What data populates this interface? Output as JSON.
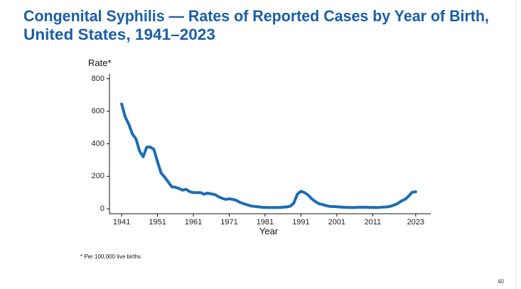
{
  "title_lines": [
    "Congenital Syphilis — Rates of Reported Cases by Year of Birth,",
    "United States, 1941–2023"
  ],
  "footnote": "* Per 100,000 live births",
  "page_number": "40",
  "chart_data": {
    "type": "line",
    "ylabel": "Rate*",
    "xlabel": "Year",
    "x": [
      1941,
      1942,
      1943,
      1944,
      1945,
      1946,
      1947,
      1948,
      1949,
      1950,
      1951,
      1952,
      1953,
      1954,
      1955,
      1956,
      1957,
      1958,
      1959,
      1960,
      1961,
      1962,
      1963,
      1964,
      1965,
      1966,
      1967,
      1968,
      1969,
      1970,
      1971,
      1972,
      1973,
      1974,
      1975,
      1976,
      1977,
      1978,
      1979,
      1980,
      1981,
      1982,
      1983,
      1984,
      1985,
      1986,
      1987,
      1988,
      1989,
      1990,
      1991,
      1992,
      1993,
      1994,
      1995,
      1996,
      1997,
      1998,
      1999,
      2000,
      2001,
      2002,
      2003,
      2004,
      2005,
      2006,
      2007,
      2008,
      2009,
      2010,
      2011,
      2012,
      2013,
      2014,
      2015,
      2016,
      2017,
      2018,
      2019,
      2020,
      2021,
      2022,
      2023
    ],
    "series": [
      {
        "color": "#1b6db5",
        "values": [
          645,
          565,
          520,
          460,
          430,
          355,
          320,
          380,
          380,
          365,
          290,
          220,
          195,
          165,
          135,
          133,
          125,
          115,
          120,
          105,
          100,
          100,
          100,
          90,
          97,
          92,
          88,
          75,
          65,
          58,
          62,
          58,
          52,
          40,
          32,
          25,
          18,
          15,
          13,
          10,
          9,
          8,
          8,
          8,
          9,
          10,
          12,
          16,
          35,
          90,
          108,
          100,
          85,
          62,
          45,
          32,
          27,
          20,
          15,
          14,
          13,
          11,
          10,
          9,
          8,
          8,
          10,
          10,
          10,
          9,
          9,
          8,
          9,
          11,
          12,
          16,
          23,
          33,
          48,
          58,
          77,
          102,
          105
        ]
      }
    ],
    "xlim": [
      1937.6,
      2027.2
    ],
    "xticks": [
      1941,
      1951,
      1961,
      1971,
      1981,
      1991,
      2001,
      2011,
      2023
    ],
    "ylim": [
      -30,
      830
    ],
    "yticks": [
      0,
      200,
      400,
      600,
      800
    ]
  }
}
